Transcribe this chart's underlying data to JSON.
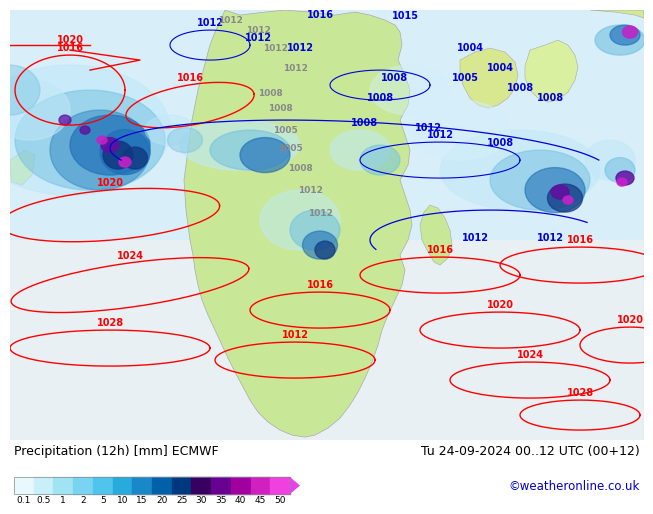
{
  "title_left": "Precipitation (12h) [mm] ECMWF",
  "title_right": "Tu 24-09-2024 00..12 UTC (00+12)",
  "credit": "©weatheronline.co.uk",
  "colorbar_values": [
    "0.1",
    "0.5",
    "1",
    "2",
    "5",
    "10",
    "15",
    "20",
    "25",
    "30",
    "35",
    "40",
    "45",
    "50"
  ],
  "cb_colors": [
    "#e8f8fc",
    "#c8f0f8",
    "#a0e4f4",
    "#78d4f0",
    "#50c4ec",
    "#28aadc",
    "#1888c8",
    "#0060a8",
    "#003880",
    "#380060",
    "#680090",
    "#a000a0",
    "#d020c0",
    "#f040e0"
  ],
  "credit_color": "#0000cc",
  "bottom_bg": "#ffffff",
  "map_ocean_color": "#d0ecf8",
  "map_land_color": "#c8e898",
  "map_land_color2": "#d8f0a0",
  "precip_light": "#b8ecf8",
  "precip_mid": "#60b8e0",
  "precip_dark": "#1050a0",
  "precip_purple": "#8000a8",
  "precip_magenta": "#d000d0",
  "contour_red": "#ff0000",
  "contour_blue": "#0000dd",
  "contour_gray": "#888888"
}
